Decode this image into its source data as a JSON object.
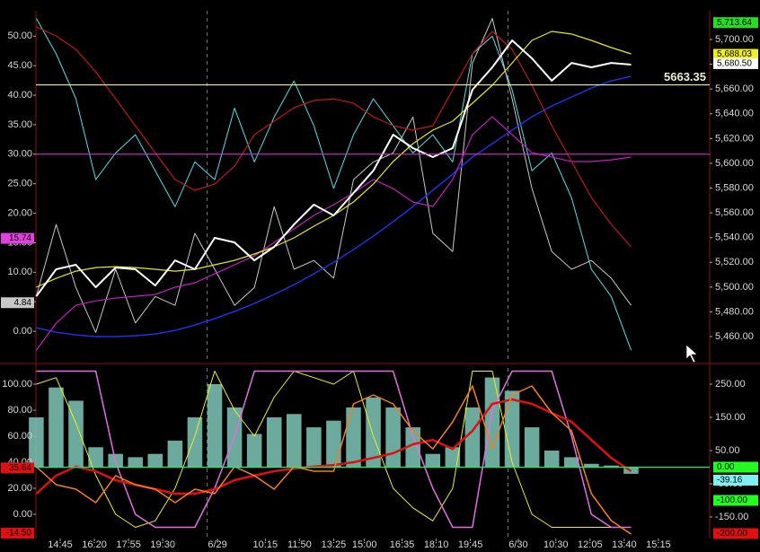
{
  "chart_data": [
    {
      "type": "line",
      "x": [
        -0.7,
        -0.12,
        0.46,
        1.04,
        1.62,
        2.2,
        2.78,
        3.36,
        3.94,
        4.52,
        5.1,
        5.68,
        6.26,
        6.84,
        7.42,
        8.0,
        8.58,
        9.16,
        9.74,
        10.32,
        10.9,
        11.48,
        12.06,
        12.64,
        13.22,
        13.8,
        14.38,
        14.96,
        15.54,
        16.12,
        16.7
      ],
      "xlim": [
        -0.71,
        19.0
      ],
      "ylim": [
        -4.7,
        54.3
      ],
      "yticks": [
        {
          "value": 0,
          "label": "0.00"
        },
        {
          "value": 5,
          "label": "5.00"
        },
        {
          "value": 10,
          "label": "10.00"
        },
        {
          "value": 15,
          "label": "15.00"
        },
        {
          "value": 20,
          "label": "20.00"
        },
        {
          "value": 25,
          "label": "25.00"
        },
        {
          "value": 30,
          "label": "30.00"
        },
        {
          "value": 35,
          "label": "35.00"
        },
        {
          "value": 40,
          "label": "40.00"
        },
        {
          "value": 45,
          "label": "45.00"
        },
        {
          "value": 50,
          "label": "50.00"
        }
      ],
      "y2lim": [
        5441.9,
        5723.2
      ],
      "y2ticks": [
        {
          "value": 5460,
          "label": "5,460.00"
        },
        {
          "value": 5480,
          "label": "5,480.00"
        },
        {
          "value": 5500,
          "label": "5,500.00"
        },
        {
          "value": 5520,
          "label": "5,520.00"
        },
        {
          "value": 5540,
          "label": "5,540.00"
        },
        {
          "value": 5560,
          "label": "5,560.00"
        },
        {
          "value": 5580,
          "label": "5,580.00"
        },
        {
          "value": 5600,
          "label": "5,600.00"
        },
        {
          "value": 5620,
          "label": "5,620.00"
        },
        {
          "value": 5640,
          "label": "5,640.00"
        },
        {
          "value": 5660,
          "label": "5,660.00"
        },
        {
          "value": 5680,
          "label": "5,680.00"
        },
        {
          "value": 5700,
          "label": "5,700.00"
        }
      ],
      "session_breaks": [
        4.3,
        13.1
      ],
      "levels": [
        {
          "value": 5663.35,
          "axis": "y2",
          "color": "#f0f080",
          "show_value": true
        },
        {
          "value": 30,
          "axis": "y",
          "color": "#d030d0",
          "show_value": false
        }
      ],
      "series": [
        {
          "color": "#4fe0e8",
          "axis": "y",
          "width": 1,
          "values": [
            53.0,
            47.0,
            39.4,
            25.7,
            30.2,
            33.3,
            27.2,
            21.1,
            28.7,
            25.7,
            37.8,
            28.7,
            36.3,
            42.4,
            34.8,
            24.2,
            33.3,
            39.4,
            34.8,
            30.2,
            33.3,
            28.7,
            47.0,
            50.0,
            40.9,
            27.2,
            30.2,
            22.6,
            10.5,
            5.9,
            -3.2
          ]
        },
        {
          "color": "#c8c8c8",
          "axis": "y",
          "width": 1,
          "values": [
            5.9,
            18.1,
            7.4,
            -0.2,
            10.5,
            1.4,
            5.9,
            4.4,
            16.6,
            10.5,
            4.4,
            7.4,
            21.1,
            10.5,
            12.0,
            9.0,
            25.7,
            28.7,
            30.2,
            36.3,
            16.6,
            13.5,
            45.4,
            53.0,
            39.4,
            24.2,
            13.5,
            10.5,
            12.0,
            9.0,
            4.4
          ]
        },
        {
          "color": "#2030e0",
          "axis": "y2",
          "width": 1.5,
          "values": [
            5467.2,
            5463.6,
            5461.4,
            5460.0,
            5460.0,
            5460.7,
            5462.1,
            5465.0,
            5469.4,
            5474.5,
            5480.3,
            5486.8,
            5494.1,
            5502.0,
            5510.7,
            5520.1,
            5530.3,
            5541.2,
            5552.8,
            5565.1,
            5578.2,
            5591.2,
            5605.0,
            5615.9,
            5626.8,
            5637.6,
            5646.3,
            5653.6,
            5660.8,
            5666.6,
            5670.3
          ]
        },
        {
          "color": "#c020c0",
          "axis": "y2",
          "width": 1.2,
          "values": [
            5449.1,
            5470.8,
            5485.3,
            5488.9,
            5491.1,
            5492.6,
            5494.0,
            5499.9,
            5503.5,
            5510.7,
            5518.0,
            5525.2,
            5536.1,
            5547.0,
            5557.9,
            5566.6,
            5576.0,
            5586.9,
            5579.6,
            5568.8,
            5565.1,
            5586.9,
            5623.1,
            5637.6,
            5623.1,
            5608.6,
            5605.0,
            5601.4,
            5601.4,
            5602.8,
            5605.0
          ]
        },
        {
          "color": "#c01818",
          "axis": "y2",
          "width": 1.2,
          "values": [
            5710.2,
            5702.9,
            5692.0,
            5673.9,
            5652.1,
            5630.4,
            5608.6,
            5586.9,
            5578.2,
            5583.2,
            5597.7,
            5623.1,
            5634.0,
            5644.9,
            5650.7,
            5652.1,
            5648.5,
            5637.6,
            5630.4,
            5626.8,
            5630.4,
            5659.4,
            5688.4,
            5706.5,
            5692.0,
            5663.0,
            5630.4,
            5601.4,
            5572.4,
            5550.6,
            5532.5
          ]
        },
        {
          "color": "#e8e820",
          "axis": "y2",
          "width": 1.2,
          "values": [
            5499.9,
            5507.1,
            5512.9,
            5515.8,
            5516.5,
            5515.8,
            5514.4,
            5512.9,
            5514.4,
            5518.0,
            5521.6,
            5526.7,
            5532.5,
            5539.8,
            5549.2,
            5557.9,
            5568.8,
            5583.2,
            5601.4,
            5615.9,
            5626.8,
            5634.0,
            5648.5,
            5663.0,
            5681.1,
            5699.3,
            5706.5,
            5704.4,
            5699.3,
            5693.5,
            5688.4
          ]
        },
        {
          "color": "#ffffff",
          "axis": "y2",
          "width": 2,
          "values": [
            5492.6,
            5514.4,
            5518.0,
            5499.9,
            5515.8,
            5514.4,
            5501.3,
            5521.6,
            5514.4,
            5539.8,
            5536.1,
            5521.6,
            5532.5,
            5550.6,
            5566.6,
            5557.9,
            5576.0,
            5594.1,
            5623.1,
            5612.3,
            5605.0,
            5612.3,
            5659.4,
            5677.5,
            5699.3,
            5684.8,
            5666.7,
            5681.1,
            5677.5,
            5681.1,
            5679.7
          ]
        }
      ],
      "badges": [
        {
          "value": 5713.64,
          "label": "5,713.64",
          "axis": "y2",
          "color": "#20e020"
        },
        {
          "value": 5688.03,
          "label": "5,688.03",
          "axis": "y2",
          "color": "#f0f020"
        },
        {
          "value": 5680.5,
          "label": "5,680.50",
          "axis": "y2",
          "color": "#ffffff"
        },
        {
          "value": 15.74,
          "label": "15.74",
          "axis": "y",
          "color": "#e040e0"
        },
        {
          "value": 4.84,
          "label": "4.84",
          "axis": "y",
          "color": "#c8c8c8"
        }
      ]
    },
    {
      "type": "line",
      "x": [
        -0.7,
        -0.12,
        0.46,
        1.04,
        1.62,
        2.2,
        2.78,
        3.36,
        3.94,
        4.52,
        5.1,
        5.68,
        6.26,
        6.84,
        7.42,
        8.0,
        8.58,
        9.16,
        9.74,
        10.32,
        10.9,
        11.48,
        12.06,
        12.64,
        13.22,
        13.8,
        14.38,
        14.96,
        15.54,
        16.12,
        16.7
      ],
      "xlim": [
        -0.71,
        19.0
      ],
      "xticks": [
        {
          "value": 0,
          "label": "14:45"
        },
        {
          "value": 1,
          "label": "16:20"
        },
        {
          "value": 2,
          "label": "17:55"
        },
        {
          "value": 3,
          "label": "19:30"
        },
        {
          "value": 4.6,
          "label": "6/29"
        },
        {
          "value": 6,
          "label": "10:15"
        },
        {
          "value": 7,
          "label": "11:50"
        },
        {
          "value": 8,
          "label": "13:25"
        },
        {
          "value": 8.9,
          "label": "15:00"
        },
        {
          "value": 10,
          "label": "16:35"
        },
        {
          "value": 11,
          "label": "18:10"
        },
        {
          "value": 12,
          "label": "19:45"
        },
        {
          "value": 13.4,
          "label": "6/30"
        },
        {
          "value": 14.5,
          "label": "10:30"
        },
        {
          "value": 15.5,
          "label": "12:05"
        },
        {
          "value": 16.5,
          "label": "13:40"
        },
        {
          "value": 17.5,
          "label": "15:15"
        }
      ],
      "ylim": [
        -18.6,
        112.4
      ],
      "yticks": [
        {
          "value": 0,
          "label": "0.00"
        },
        {
          "value": 20,
          "label": "20.00"
        },
        {
          "value": 40,
          "label": "40.00"
        },
        {
          "value": 60,
          "label": "60.00"
        },
        {
          "value": 80,
          "label": "80.00"
        },
        {
          "value": 100,
          "label": "100.00"
        }
      ],
      "y2lim": [
        -214.9,
        298.6
      ],
      "y2ticks": [
        {
          "value": 250,
          "label": "250.00"
        },
        {
          "value": 150,
          "label": "150.00"
        },
        {
          "value": 50,
          "label": "50.00"
        },
        {
          "value": -50,
          "label": "-50.00"
        },
        {
          "value": -150,
          "label": "-150.00"
        }
      ],
      "session_breaks": [
        4.3,
        13.1
      ],
      "levels": [
        {
          "value": 0,
          "axis": "y2",
          "color": "#00ff66",
          "show_value": false
        }
      ],
      "series": [
        {
          "type": "bar",
          "color": "#7ec8b8",
          "axis": "y2",
          "values": [
            150,
            240,
            200,
            60,
            40,
            30,
            40,
            80,
            150,
            250,
            180,
            100,
            150,
            160,
            120,
            140,
            180,
            210,
            180,
            120,
            40,
            60,
            180,
            270,
            230,
            120,
            50,
            30,
            10,
            5,
            -20
          ]
        },
        {
          "color": "#f0f020",
          "axis": "y",
          "width": 1,
          "values": [
            100,
            105,
            70,
            30,
            0,
            -10,
            -5,
            20,
            60,
            110,
            80,
            60,
            90,
            110,
            105,
            100,
            110,
            60,
            20,
            5,
            -5,
            20,
            110,
            110,
            40,
            0,
            -10,
            -10,
            -10,
            -10,
            -10
          ]
        },
        {
          "color": "#e070e0",
          "axis": "y",
          "width": 1.5,
          "values": [
            110,
            110,
            110,
            110,
            40,
            0,
            -10,
            -10,
            -10,
            20,
            60,
            110,
            110,
            110,
            110,
            110,
            110,
            110,
            110,
            60,
            20,
            -10,
            -10,
            80,
            110,
            110,
            110,
            60,
            0,
            -10,
            -10
          ]
        },
        {
          "color": "#e01010",
          "axis": "y",
          "width": 2.5,
          "values": [
            15.9,
            29.7,
            36.6,
            33.1,
            26.2,
            22.8,
            19.3,
            15.9,
            15.9,
            19.3,
            26.2,
            29.7,
            33.1,
            35.2,
            36.6,
            37.9,
            40.0,
            43.4,
            46.9,
            53.8,
            57.2,
            50.3,
            64.1,
            84.8,
            88.3,
            84.8,
            77.9,
            71.0,
            57.2,
            43.4,
            33.1
          ]
        },
        {
          "color": "#f08020",
          "axis": "y",
          "width": 1.5,
          "values": [
            36.6,
            22.8,
            19.3,
            9.0,
            29.7,
            22.8,
            19.3,
            9.0,
            19.3,
            15.9,
            36.6,
            29.7,
            19.3,
            36.6,
            33.1,
            33.1,
            84.8,
            91.7,
            84.8,
            64.1,
            50.3,
            71.0,
            98.6,
            50.3,
            91.7,
            98.6,
            77.9,
            64.1,
            15.9,
            -4.8,
            -15.2
          ]
        }
      ],
      "badges": [
        {
          "value": 35.64,
          "label": "35.64",
          "axis": "y",
          "color": "#e01010"
        },
        {
          "value": -14.5,
          "label": "-14.50",
          "axis": "y",
          "color": "#e01010"
        },
        {
          "value": 0,
          "label": "0.00",
          "axis": "y2",
          "color": "#20ff20"
        },
        {
          "value": -39.16,
          "label": "-39.16",
          "axis": "y2",
          "color": "#80f0f0"
        },
        {
          "value": -100,
          "label": "-100.00",
          "axis": "y2",
          "color": "#20ff20"
        },
        {
          "value": -200,
          "label": "-200.00",
          "axis": "y2",
          "color": "#e01010"
        }
      ]
    }
  ]
}
